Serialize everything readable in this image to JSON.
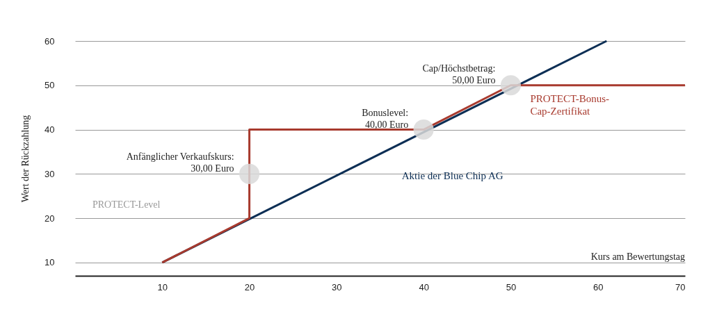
{
  "chart_data": {
    "type": "line",
    "xlabel": "Kurs am Bewertungstag",
    "ylabel": "Wert der Rückzahlung",
    "series": [
      {
        "name": "Aktie der Blue Chip AG",
        "color": "#0d2f55",
        "x": [
          10,
          61
        ],
        "values": [
          10,
          60
        ]
      },
      {
        "name": "PROTECT-Bonus-Cap-Zertifikat",
        "color": "#a83a2e",
        "x": [
          10,
          20,
          20,
          40,
          50,
          70
        ],
        "values": [
          10,
          20,
          40,
          40,
          50,
          50
        ]
      }
    ],
    "annotations": [
      {
        "text": "Anfänglicher Verkaufskurs:\n30,00 Euro",
        "x": 20,
        "y": 30
      },
      {
        "text": "Bonuslevel:\n40,00 Euro",
        "x": 40,
        "y": 40
      },
      {
        "text": "Cap/Höchstbetrag:\n50,00 Euro",
        "x": 50,
        "y": 50
      },
      "PROTECT-Level"
    ],
    "xlim": [
      0,
      70
    ],
    "ylim": [
      7,
      60
    ],
    "xticks": [
      10,
      20,
      30,
      40,
      50,
      60,
      70
    ],
    "yticks": [
      10,
      20,
      30,
      40,
      50,
      60
    ],
    "grid": "y",
    "marker": "none",
    "line_style": "solid"
  }
}
